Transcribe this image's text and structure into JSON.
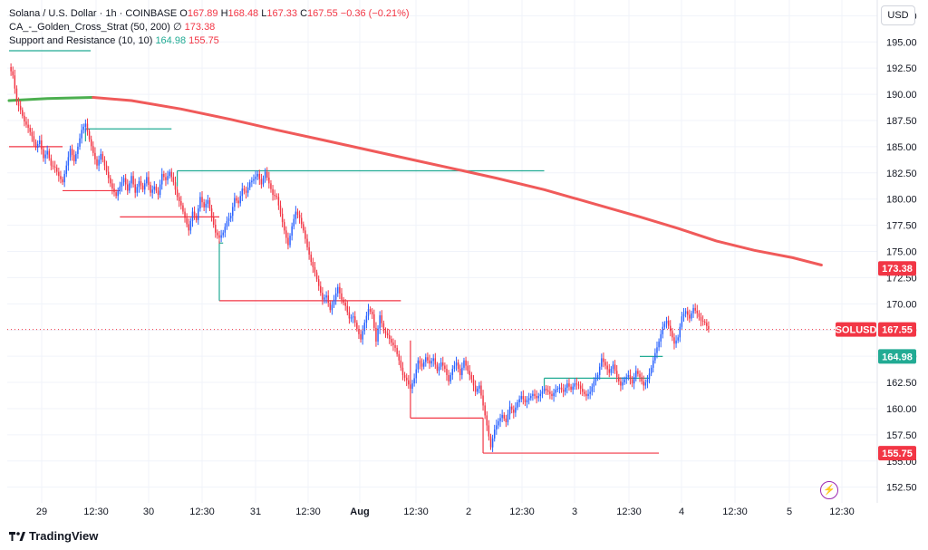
{
  "header": {
    "symbol": "Solana / U.S. Dollar · 1h · COINBASE",
    "o_label": "O",
    "o": "167.89",
    "h_label": "H",
    "h": "168.48",
    "l_label": "L",
    "l": "167.33",
    "c_label": "C",
    "c": "167.55",
    "change": "−0.36 (−0.21%)",
    "ma_name": "CA_-_Golden_Cross_Strat (50, 200)",
    "ma_sym": "∅",
    "ma_value": "173.38",
    "sr_name": "Support and Resistance (10, 10)",
    "sr_res": "164.98",
    "sr_sup": "155.75"
  },
  "currency": "USD",
  "brand": "TradingView",
  "colors": {
    "up": "#2962ff",
    "down": "#f23645",
    "ma": "#f05a5a",
    "ma_green": "#4caf50",
    "resistance": "#22ab94",
    "support": "#f23645"
  },
  "chart_data": {
    "type": "candlestick",
    "x_tick_labels": [
      "29",
      "12:30",
      "30",
      "12:30",
      "31",
      "12:30",
      "Aug",
      "12:30",
      "2",
      "12:30",
      "3",
      "12:30",
      "4",
      "12:30",
      "5",
      "12:30"
    ],
    "y_ticks": [
      "197.50",
      "195.00",
      "192.50",
      "190.00",
      "187.50",
      "185.00",
      "182.50",
      "180.00",
      "177.50",
      "175.00",
      "172.50",
      "170.00",
      "167.50",
      "165.00",
      "162.50",
      "160.00",
      "157.50",
      "155.00",
      "152.50"
    ],
    "ylim": [
      151.0,
      199.0
    ],
    "price_labels": [
      {
        "text": "173.38",
        "value": 173.38,
        "color": "#f23645"
      },
      {
        "text": "SOLUSD",
        "value": 167.55,
        "color": "#f23645"
      },
      {
        "text": "167.55",
        "value": 167.55,
        "color": "#f23645"
      },
      {
        "text": "164.98",
        "value": 164.98,
        "color": "#22ab94"
      },
      {
        "text": "155.75",
        "value": 155.75,
        "color": "#f23645"
      }
    ],
    "close_path": [
      [
        0,
        192.6
      ],
      [
        2,
        191.8
      ],
      [
        4,
        189.3
      ],
      [
        6,
        188.5
      ],
      [
        8,
        187.4
      ],
      [
        10,
        186.8
      ],
      [
        12,
        186.0
      ],
      [
        14,
        184.9
      ],
      [
        16,
        185.6
      ],
      [
        18,
        183.9
      ],
      [
        20,
        184.6
      ],
      [
        22,
        183.2
      ],
      [
        24,
        183.0
      ],
      [
        26,
        182.2
      ],
      [
        28,
        181.6
      ],
      [
        30,
        183.2
      ],
      [
        32,
        184.8
      ],
      [
        34,
        183.6
      ],
      [
        36,
        185.0
      ],
      [
        38,
        186.6
      ],
      [
        40,
        187.2
      ],
      [
        42,
        185.7
      ],
      [
        44,
        184.4
      ],
      [
        46,
        183.2
      ],
      [
        48,
        184.3
      ],
      [
        50,
        183.2
      ],
      [
        52,
        182.0
      ],
      [
        54,
        181.0
      ],
      [
        56,
        180.3
      ],
      [
        58,
        181.2
      ],
      [
        60,
        182.0
      ],
      [
        62,
        180.8
      ],
      [
        64,
        182.2
      ],
      [
        66,
        180.6
      ],
      [
        68,
        181.7
      ],
      [
        70,
        180.9
      ],
      [
        72,
        182.1
      ],
      [
        74,
        180.6
      ],
      [
        76,
        181.2
      ],
      [
        78,
        180.4
      ],
      [
        80,
        182.4
      ],
      [
        82,
        181.8
      ],
      [
        84,
        182.6
      ],
      [
        86,
        181.6
      ],
      [
        88,
        180.2
      ],
      [
        90,
        179.4
      ],
      [
        92,
        178.2
      ],
      [
        94,
        177.0
      ],
      [
        96,
        178.8
      ],
      [
        98,
        178.0
      ],
      [
        100,
        180.2
      ],
      [
        102,
        179.2
      ],
      [
        104,
        179.9
      ],
      [
        106,
        178.3
      ],
      [
        108,
        176.8
      ],
      [
        110,
        176.3
      ],
      [
        112,
        176.8
      ],
      [
        114,
        177.9
      ],
      [
        116,
        178.4
      ],
      [
        118,
        180.1
      ],
      [
        120,
        179.6
      ],
      [
        122,
        181.0
      ],
      [
        124,
        180.6
      ],
      [
        126,
        181.6
      ],
      [
        128,
        181.9
      ],
      [
        130,
        182.4
      ],
      [
        132,
        181.4
      ],
      [
        134,
        182.6
      ],
      [
        136,
        181.5
      ],
      [
        138,
        180.4
      ],
      [
        140,
        180.2
      ],
      [
        142,
        178.6
      ],
      [
        144,
        177.0
      ],
      [
        146,
        175.6
      ],
      [
        148,
        177.4
      ],
      [
        150,
        178.8
      ],
      [
        152,
        178.2
      ],
      [
        154,
        177.0
      ],
      [
        156,
        175.4
      ],
      [
        158,
        174.0
      ],
      [
        160,
        173.0
      ],
      [
        162,
        171.7
      ],
      [
        164,
        170.4
      ],
      [
        166,
        170.8
      ],
      [
        168,
        169.4
      ],
      [
        170,
        170.4
      ],
      [
        172,
        171.6
      ],
      [
        174,
        170.4
      ],
      [
        176,
        169.8
      ],
      [
        178,
        168.6
      ],
      [
        180,
        168.8
      ],
      [
        182,
        167.6
      ],
      [
        184,
        166.6
      ],
      [
        186,
        168.2
      ],
      [
        188,
        169.5
      ],
      [
        190,
        169.0
      ],
      [
        192,
        166.4
      ],
      [
        194,
        168.9
      ],
      [
        196,
        167.4
      ],
      [
        198,
        167.0
      ],
      [
        200,
        166.3
      ],
      [
        202,
        165.8
      ],
      [
        204,
        164.6
      ],
      [
        206,
        163.2
      ],
      [
        208,
        162.7
      ],
      [
        210,
        161.9
      ],
      [
        212,
        162.9
      ],
      [
        214,
        164.6
      ],
      [
        216,
        164.0
      ],
      [
        218,
        164.9
      ],
      [
        220,
        164.3
      ],
      [
        222,
        164.8
      ],
      [
        224,
        163.6
      ],
      [
        226,
        164.4
      ],
      [
        228,
        163.8
      ],
      [
        230,
        162.6
      ],
      [
        232,
        163.8
      ],
      [
        234,
        164.4
      ],
      [
        236,
        163.2
      ],
      [
        238,
        164.6
      ],
      [
        240,
        163.6
      ],
      [
        242,
        162.8
      ],
      [
        244,
        161.6
      ],
      [
        246,
        162.2
      ],
      [
        248,
        160.3
      ],
      [
        250,
        158.4
      ],
      [
        252,
        156.3
      ],
      [
        254,
        158.0
      ],
      [
        256,
        158.8
      ],
      [
        258,
        159.4
      ],
      [
        260,
        158.7
      ],
      [
        262,
        160.2
      ],
      [
        264,
        159.6
      ],
      [
        266,
        160.6
      ],
      [
        268,
        161.2
      ],
      [
        270,
        160.6
      ],
      [
        272,
        161.0
      ],
      [
        274,
        161.4
      ],
      [
        276,
        161.0
      ],
      [
        278,
        161.4
      ],
      [
        280,
        161.9
      ],
      [
        282,
        161.6
      ],
      [
        284,
        161.2
      ],
      [
        286,
        161.8
      ],
      [
        288,
        162.0
      ],
      [
        290,
        161.6
      ],
      [
        292,
        162.4
      ],
      [
        294,
        161.8
      ],
      [
        296,
        162.4
      ],
      [
        298,
        162.2
      ],
      [
        300,
        161.6
      ],
      [
        302,
        161.2
      ],
      [
        304,
        161.6
      ],
      [
        306,
        162.6
      ],
      [
        308,
        163.2
      ],
      [
        310,
        164.8
      ],
      [
        312,
        164.1
      ],
      [
        314,
        163.4
      ],
      [
        316,
        164.2
      ],
      [
        318,
        163.0
      ],
      [
        320,
        162.2
      ],
      [
        322,
        162.8
      ],
      [
        324,
        163.2
      ],
      [
        326,
        162.4
      ],
      [
        328,
        163.6
      ],
      [
        330,
        163.0
      ],
      [
        332,
        162.2
      ],
      [
        334,
        162.8
      ],
      [
        336,
        163.9
      ],
      [
        338,
        165.3
      ],
      [
        340,
        166.4
      ],
      [
        342,
        167.8
      ],
      [
        344,
        168.4
      ],
      [
        346,
        167.4
      ],
      [
        348,
        166.2
      ],
      [
        350,
        166.8
      ],
      [
        352,
        168.8
      ],
      [
        354,
        169.3
      ],
      [
        356,
        168.6
      ],
      [
        358,
        169.6
      ],
      [
        360,
        169.1
      ],
      [
        362,
        168.4
      ],
      [
        364,
        168.2
      ],
      [
        366,
        167.55
      ]
    ],
    "ma_path": [
      [
        0,
        189.4
      ],
      [
        20,
        189.6
      ],
      [
        44,
        189.7
      ],
      [
        64,
        189.4
      ],
      [
        90,
        188.6
      ],
      [
        116,
        187.6
      ],
      [
        140,
        186.6
      ],
      [
        165,
        185.6
      ],
      [
        190,
        184.6
      ],
      [
        215,
        183.6
      ],
      [
        235,
        182.8
      ],
      [
        255,
        182.0
      ],
      [
        280,
        180.9
      ],
      [
        305,
        179.6
      ],
      [
        330,
        178.3
      ],
      [
        350,
        177.2
      ],
      [
        370,
        176.0
      ],
      [
        390,
        175.1
      ],
      [
        410,
        174.4
      ],
      [
        425,
        173.7
      ]
    ],
    "ma_green_until": 44,
    "resistance_lines": [
      {
        "start": 40,
        "end": 85,
        "value": 186.7
      },
      {
        "start": 88,
        "end": 280,
        "value": 182.7
      },
      {
        "start": 110,
        "end": 112,
        "value": 175.8
      },
      {
        "start": 280,
        "end": 335,
        "value": 162.9
      },
      {
        "start": 330,
        "end": 342,
        "value": 164.98
      }
    ],
    "support_lines": [
      {
        "start": 0,
        "end": 28,
        "value": 185.0
      },
      {
        "start": 28,
        "end": 58,
        "value": 180.8
      },
      {
        "start": 58,
        "end": 110,
        "value": 178.3
      },
      {
        "start": 110,
        "end": 205,
        "value": 170.3
      },
      {
        "start": 210,
        "end": 248,
        "value": 159.1
      },
      {
        "start": 248,
        "end": 340,
        "value": 155.75
      }
    ],
    "vertical_connectors": [
      {
        "at": 40,
        "from": 186.7,
        "to": 185.5,
        "color": "#22ab94"
      },
      {
        "at": 88,
        "from": 182.7,
        "to": 181.2,
        "color": "#22ab94"
      },
      {
        "at": 110,
        "from": 176.0,
        "to": 170.3,
        "color": "#22ab94"
      },
      {
        "at": 280,
        "from": 162.9,
        "to": 161.7,
        "color": "#22ab94"
      },
      {
        "at": 248,
        "from": 159.1,
        "to": 155.75,
        "color": "#f23645"
      },
      {
        "at": 210,
        "from": 166.5,
        "to": 159.1,
        "color": "#f23645"
      }
    ]
  }
}
